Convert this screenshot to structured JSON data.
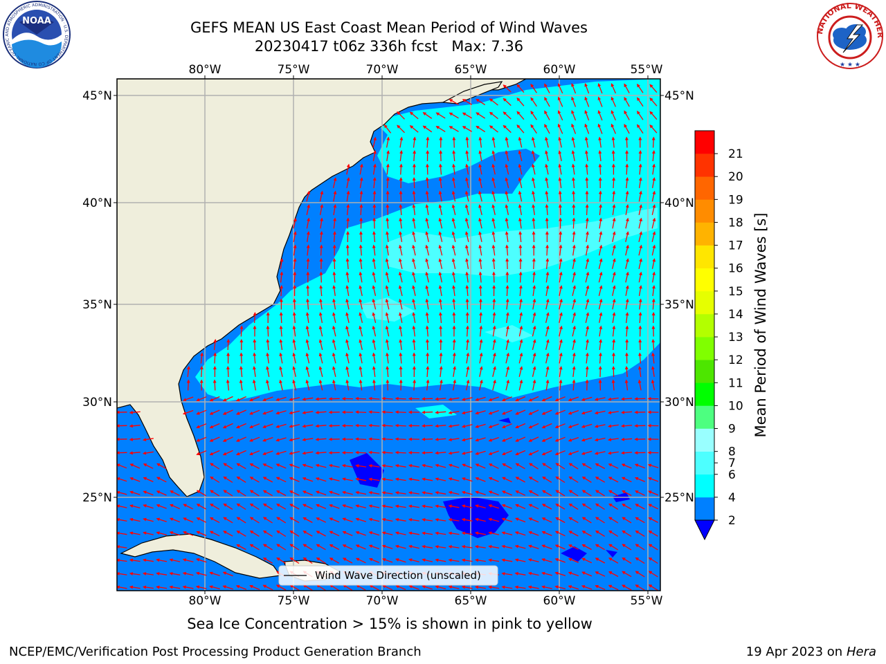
{
  "title": {
    "line1": "GEFS MEAN US East Coast Mean Period of Wind Waves",
    "line2": "20230417 t06z 336h fcst   Max: 7.36"
  },
  "map": {
    "lon_labels": [
      "80°W",
      "75°W",
      "70°W",
      "65°W",
      "60°W",
      "55°W"
    ],
    "lat_labels": [
      "45°N",
      "40°N",
      "35°N",
      "30°N",
      "25°N"
    ],
    "lon_range": [
      -85,
      -54.5
    ],
    "lat_range": [
      20.5,
      46
    ],
    "land_color": "#efeedc",
    "arrow_color": "#ff0000"
  },
  "legend": {
    "label": "Wind Wave Direction (unscaled)"
  },
  "colorbar": {
    "title": "Mean Period of Wind Waves [s]",
    "ticks": [
      "2",
      "4",
      "6",
      "7",
      "8",
      "9",
      "10",
      "11",
      "12",
      "13",
      "14",
      "15",
      "16",
      "17",
      "18",
      "19",
      "20",
      "21"
    ],
    "colors": [
      "#0080ff",
      "#00ffff",
      "#4dffff",
      "#99ffff",
      "#4dff80",
      "#00ff00",
      "#4de600",
      "#80ff00",
      "#b3ff00",
      "#e6ff00",
      "#ffff00",
      "#ffe600",
      "#ffb300",
      "#ff8c00",
      "#ff6600",
      "#ff3300",
      "#ff0000"
    ],
    "under_color": "#0000ff"
  },
  "subcaption": "Sea Ice Concentration > 15% is shown in pink to yellow",
  "footer": {
    "left": "NCEP/EMC/Verification Post Processing Product Generation Branch",
    "right_date": "19 Apr 2023 on ",
    "right_host": "Hera"
  },
  "logos": {
    "noaa_text": "NOAA",
    "noaa_ring": "NATIONAL OCEANIC AND ATMOSPHERIC ADMINISTRATION · U.S. DEPARTMENT OF COMMERCE",
    "nws_ring": "NATIONAL WEATHER SERVICE"
  }
}
